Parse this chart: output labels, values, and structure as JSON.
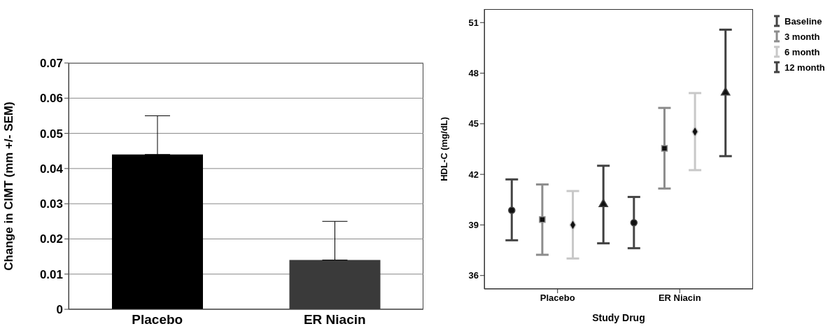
{
  "chart_data": [
    {
      "type": "bar",
      "ylabel": "Change in CIMT (mm +/- SEM)",
      "categories": [
        "Placebo",
        "ER Niacin"
      ],
      "values": [
        0.044,
        0.014
      ],
      "colors": [
        "#000000",
        "#3a3a3a"
      ],
      "errors": [
        [
          0.044,
          0.055
        ],
        [
          0.014,
          0.025
        ]
      ],
      "ylim": [
        0,
        0.07
      ],
      "yticks": [
        0,
        0.01,
        0.02,
        0.03,
        0.04,
        0.05,
        0.06,
        0.07
      ],
      "grid": "y"
    },
    {
      "type": "scatter",
      "xlabel": "Study Drug",
      "ylabel": "HDL-C (mg/dL)",
      "categories": [
        "Placebo",
        "ER Niacin"
      ],
      "legend": "right",
      "ylim": [
        35.2,
        51.8
      ],
      "yticks": [
        36,
        39,
        42,
        45,
        48,
        51
      ],
      "series": [
        {
          "name": "Baseline",
          "color": "#454545",
          "marker": "circle",
          "values": [
            39.87,
            39.13
          ],
          "errors": [
            [
              38.09,
              41.7
            ],
            [
              37.62,
              40.66
            ]
          ]
        },
        {
          "name": "3 month",
          "color": "#8c8c8c",
          "marker": "square",
          "values": [
            39.32,
            43.54
          ],
          "errors": [
            [
              37.23,
              41.4
            ],
            [
              41.16,
              45.94
            ]
          ]
        },
        {
          "name": "6 month",
          "color": "#c8c8c8",
          "marker": "diamond",
          "values": [
            39.0,
            44.53
          ],
          "errors": [
            [
              37.01,
              41.01
            ],
            [
              42.25,
              46.82
            ]
          ]
        },
        {
          "name": "12 month",
          "color": "#404040",
          "marker": "triangle",
          "values": [
            40.23,
            46.85
          ],
          "errors": [
            [
              37.91,
              42.51
            ],
            [
              43.08,
              50.58
            ]
          ]
        }
      ]
    }
  ]
}
